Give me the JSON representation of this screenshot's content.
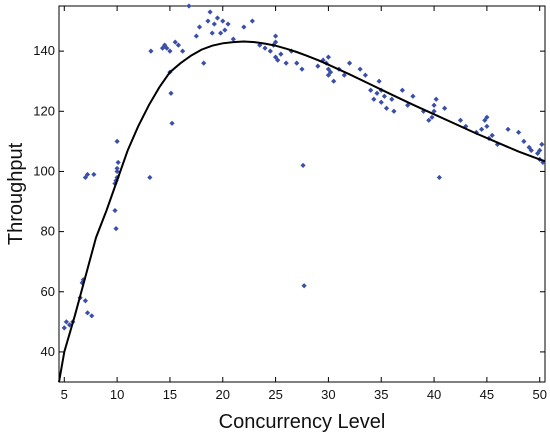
{
  "chart_data": {
    "type": "scatter",
    "xlabel": "Concurrency Level",
    "ylabel": "Throughput",
    "xlim": [
      4.5,
      50.5
    ],
    "ylim": [
      30,
      155
    ],
    "xticks": [
      5,
      10,
      15,
      20,
      25,
      30,
      35,
      40,
      45,
      50
    ],
    "yticks": [
      40,
      60,
      80,
      100,
      120,
      140
    ],
    "grid": false,
    "colors": {
      "points": "#3a4fa8",
      "curve": "#000000"
    },
    "series": [
      {
        "type": "scatter",
        "points": [
          [
            5,
            48
          ],
          [
            5.2,
            50
          ],
          [
            5.5,
            49
          ],
          [
            5.8,
            50
          ],
          [
            6.5,
            58
          ],
          [
            6.7,
            63
          ],
          [
            6.8,
            64
          ],
          [
            7,
            57
          ],
          [
            7.2,
            53
          ],
          [
            7.6,
            52
          ],
          [
            7,
            98
          ],
          [
            7.2,
            99
          ],
          [
            7.8,
            99
          ],
          [
            9.8,
            87
          ],
          [
            9.9,
            81
          ],
          [
            9.8,
            96
          ],
          [
            9.9,
            97
          ],
          [
            10,
            98
          ],
          [
            10,
            100
          ],
          [
            10,
            101
          ],
          [
            10.1,
            103
          ],
          [
            10,
            110
          ],
          [
            13.1,
            98
          ],
          [
            13.2,
            140
          ],
          [
            14.3,
            141
          ],
          [
            14.5,
            142
          ],
          [
            14.7,
            141
          ],
          [
            15,
            140
          ],
          [
            15,
            133
          ],
          [
            15.1,
            126
          ],
          [
            15.2,
            116
          ],
          [
            15.5,
            143
          ],
          [
            15.8,
            142
          ],
          [
            16.2,
            140
          ],
          [
            16.8,
            155
          ],
          [
            17.5,
            145
          ],
          [
            17.8,
            148
          ],
          [
            18.2,
            136
          ],
          [
            18.6,
            150
          ],
          [
            18.8,
            153
          ],
          [
            19,
            146
          ],
          [
            19.2,
            149
          ],
          [
            19.5,
            151
          ],
          [
            19.8,
            146
          ],
          [
            20,
            150
          ],
          [
            20.2,
            147
          ],
          [
            20.5,
            149
          ],
          [
            21,
            144
          ],
          [
            22,
            148
          ],
          [
            22.8,
            150
          ],
          [
            23.5,
            142
          ],
          [
            24,
            141
          ],
          [
            24.5,
            140
          ],
          [
            24.8,
            142
          ],
          [
            25,
            143
          ],
          [
            25,
            145
          ],
          [
            25,
            138
          ],
          [
            25.2,
            137
          ],
          [
            25.5,
            139
          ],
          [
            26,
            136
          ],
          [
            26.5,
            140
          ],
          [
            27,
            136
          ],
          [
            27.5,
            134
          ],
          [
            27.6,
            102
          ],
          [
            27.7,
            62
          ],
          [
            29,
            135
          ],
          [
            29.5,
            137
          ],
          [
            29.8,
            136
          ],
          [
            30,
            134
          ],
          [
            30,
            132
          ],
          [
            30,
            138
          ],
          [
            30.2,
            133
          ],
          [
            30.5,
            130
          ],
          [
            31,
            134
          ],
          [
            31.5,
            132
          ],
          [
            32,
            136
          ],
          [
            33,
            134
          ],
          [
            33.5,
            132
          ],
          [
            34,
            127
          ],
          [
            34.3,
            124
          ],
          [
            34.6,
            126
          ],
          [
            34.8,
            130
          ],
          [
            35,
            127
          ],
          [
            35,
            123
          ],
          [
            35.3,
            125
          ],
          [
            35.5,
            121
          ],
          [
            36,
            124
          ],
          [
            36.2,
            120
          ],
          [
            37,
            127
          ],
          [
            37.5,
            122
          ],
          [
            38,
            125
          ],
          [
            39,
            120
          ],
          [
            39.5,
            117
          ],
          [
            39.8,
            118
          ],
          [
            40,
            120
          ],
          [
            40,
            122
          ],
          [
            40.2,
            124
          ],
          [
            40.5,
            98
          ],
          [
            41,
            121
          ],
          [
            42.5,
            117
          ],
          [
            43,
            115
          ],
          [
            44,
            113
          ],
          [
            44.5,
            114
          ],
          [
            44.8,
            117
          ],
          [
            45,
            115
          ],
          [
            45,
            118
          ],
          [
            45.2,
            111
          ],
          [
            45.5,
            112
          ],
          [
            46,
            109
          ],
          [
            47,
            114
          ],
          [
            48,
            113
          ],
          [
            48.5,
            110
          ],
          [
            49,
            108
          ],
          [
            49.2,
            107
          ],
          [
            49.8,
            106
          ],
          [
            50,
            104
          ],
          [
            50,
            107
          ],
          [
            50.2,
            109
          ],
          [
            50.3,
            103
          ]
        ]
      },
      {
        "type": "line",
        "points": [
          [
            4.5,
            30
          ],
          [
            5,
            40
          ],
          [
            6,
            52
          ],
          [
            7,
            65
          ],
          [
            8,
            78
          ],
          [
            9,
            87
          ],
          [
            10,
            97
          ],
          [
            11,
            107
          ],
          [
            12,
            115
          ],
          [
            13,
            122
          ],
          [
            14,
            128
          ],
          [
            15,
            133
          ],
          [
            16,
            136
          ],
          [
            17,
            138.5
          ],
          [
            18,
            140.5
          ],
          [
            19,
            141.8
          ],
          [
            20,
            142.6
          ],
          [
            21,
            143
          ],
          [
            22,
            143.2
          ],
          [
            23,
            143
          ],
          [
            24,
            142.5
          ],
          [
            25,
            141.8
          ],
          [
            26,
            140.8
          ],
          [
            27,
            139.7
          ],
          [
            28,
            138.4
          ],
          [
            29,
            137
          ],
          [
            30,
            135.5
          ],
          [
            32,
            132.3
          ],
          [
            34,
            128.9
          ],
          [
            36,
            125.5
          ],
          [
            38,
            122.2
          ],
          [
            40,
            119
          ],
          [
            42,
            115.8
          ],
          [
            44,
            112.6
          ],
          [
            46,
            109.6
          ],
          [
            48,
            106.6
          ],
          [
            50,
            104
          ],
          [
            50.5,
            103.4
          ]
        ]
      }
    ]
  }
}
